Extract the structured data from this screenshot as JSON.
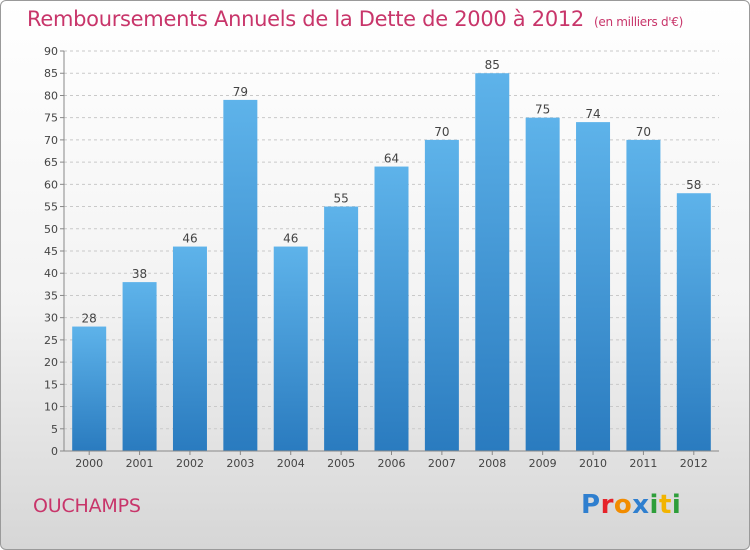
{
  "chart_data": {
    "type": "bar",
    "title": "Remboursements Annuels de la Dette de 2000 à 2012",
    "subtitle": "(en milliers d'€)",
    "categories": [
      "2000",
      "2001",
      "2002",
      "2003",
      "2004",
      "2005",
      "2006",
      "2007",
      "2008",
      "2009",
      "2010",
      "2011",
      "2012"
    ],
    "values": [
      28,
      38,
      46,
      79,
      46,
      55,
      64,
      70,
      85,
      75,
      74,
      70,
      58
    ],
    "ylim": [
      0,
      90
    ],
    "yticks": [
      0,
      5,
      10,
      15,
      20,
      25,
      30,
      35,
      40,
      45,
      50,
      55,
      60,
      65,
      70,
      75,
      80,
      85,
      90
    ],
    "grid": true,
    "colors": {
      "bar_top": "#5eb3ea",
      "bar_bottom": "#2a7bbf",
      "title": "#c8356a"
    }
  },
  "commune": "OUCHAMPS",
  "logo": {
    "text": "Proxiti",
    "letters": [
      {
        "ch": "P",
        "color": "#2f7fcf"
      },
      {
        "ch": "r",
        "color": "#e6232a"
      },
      {
        "ch": "o",
        "color": "#f28c00"
      },
      {
        "ch": "x",
        "color": "#2f7fcf"
      },
      {
        "ch": "i",
        "color": "#2e9e3a"
      },
      {
        "ch": "t",
        "color": "#f2b400"
      },
      {
        "ch": "i",
        "color": "#2e9e3a"
      }
    ]
  }
}
